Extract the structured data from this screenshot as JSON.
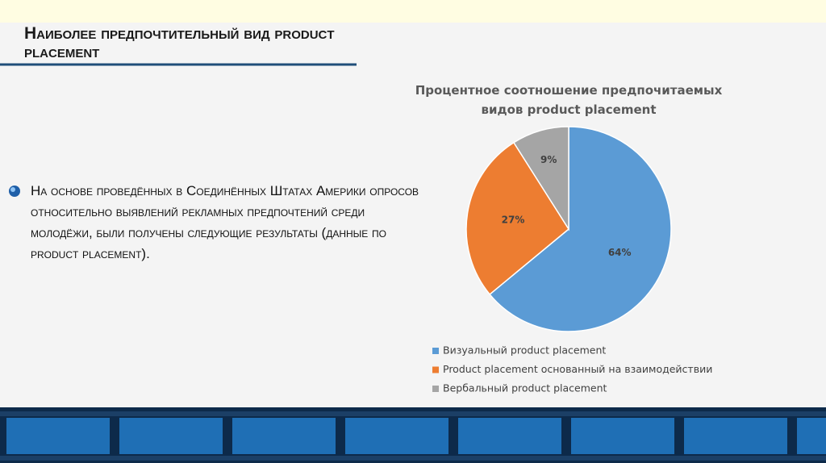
{
  "slide": {
    "title": "Наиболее предпочтительный вид product placement",
    "bullet": "На основе проведённых в Соединённых Штатах Америки опросов относительно выявлений рекламных предпочтений среди молодёжи, были получены следующие результаты (данные по product placement)."
  },
  "chart_data": {
    "type": "pie",
    "title": "Процентное соотношение предпочитаемых видов product placement",
    "categories": [
      "Визуальный product placement",
      "Product placement основанный на взаимодействии",
      "Вербальный product placement"
    ],
    "values": [
      64,
      27,
      9
    ],
    "value_labels": [
      "64%",
      "27%",
      "9%"
    ],
    "colors": [
      "#5b9bd5",
      "#ed7d31",
      "#a5a5a5"
    ],
    "legend": "bottom"
  }
}
